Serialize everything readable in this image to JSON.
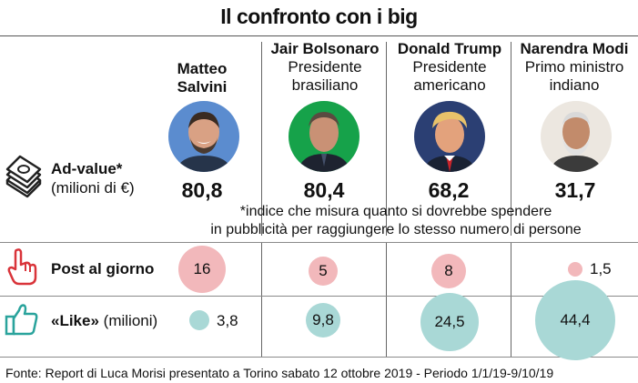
{
  "title": "Il confronto con i big",
  "people": [
    {
      "name": "Matteo Salvini",
      "role": "",
      "ad_value": "80,8",
      "posts": "16",
      "posts_num": 16,
      "likes": "3,8",
      "likes_num": 3.8
    },
    {
      "name": "Jair Bolsonaro",
      "role": "Presidente brasiliano",
      "ad_value": "80,4",
      "posts": "5",
      "posts_num": 5,
      "likes": "9,8",
      "likes_num": 9.8
    },
    {
      "name": "Donald Trump",
      "role": "Presidente americano",
      "ad_value": "68,2",
      "posts": "8",
      "posts_num": 8,
      "likes": "24,5",
      "likes_num": 24.5
    },
    {
      "name": "Narendra Modi",
      "role": "Primo ministro indiano",
      "ad_value": "31,7",
      "posts": "1,5",
      "posts_num": 1.5,
      "likes": "44,4",
      "likes_num": 44.4
    }
  ],
  "names": {
    "salvini_line1": "Matteo",
    "salvini_line2": "Salvini",
    "bolsonaro": "Jair Bolsonaro",
    "bolsonaro_role1": "Presidente",
    "bolsonaro_role2": "brasiliano",
    "trump": "Donald Trump",
    "trump_role1": "Presidente",
    "trump_role2": "americano",
    "modi": "Narendra Modi",
    "modi_role1": "Primo ministro",
    "modi_role2": "indiano"
  },
  "rows": {
    "ad_value_label": "Ad-value*",
    "ad_value_unit": "(milioni di €)",
    "note_line1": "*indice che misura quanto si dovrebbe spendere",
    "note_line2": "in pubblicità per raggiungere lo stesso numero di persone",
    "posts_label": "Post al giorno",
    "likes_label": "«Like»",
    "likes_unit": "(milioni)"
  },
  "colors": {
    "posts_bubble": "#f2b8bb",
    "likes_bubble": "#a9d8d6",
    "icon_red": "#d9343a",
    "icon_teal": "#2aa39c"
  },
  "icons": [
    "money-stack-icon",
    "pointing-hand-icon",
    "thumbs-up-icon"
  ],
  "footer": "Fonte: Report di Luca Morisi presentato a Torino sabato 12 ottobre 2019 - Periodo 1/1/19-9/10/19"
}
